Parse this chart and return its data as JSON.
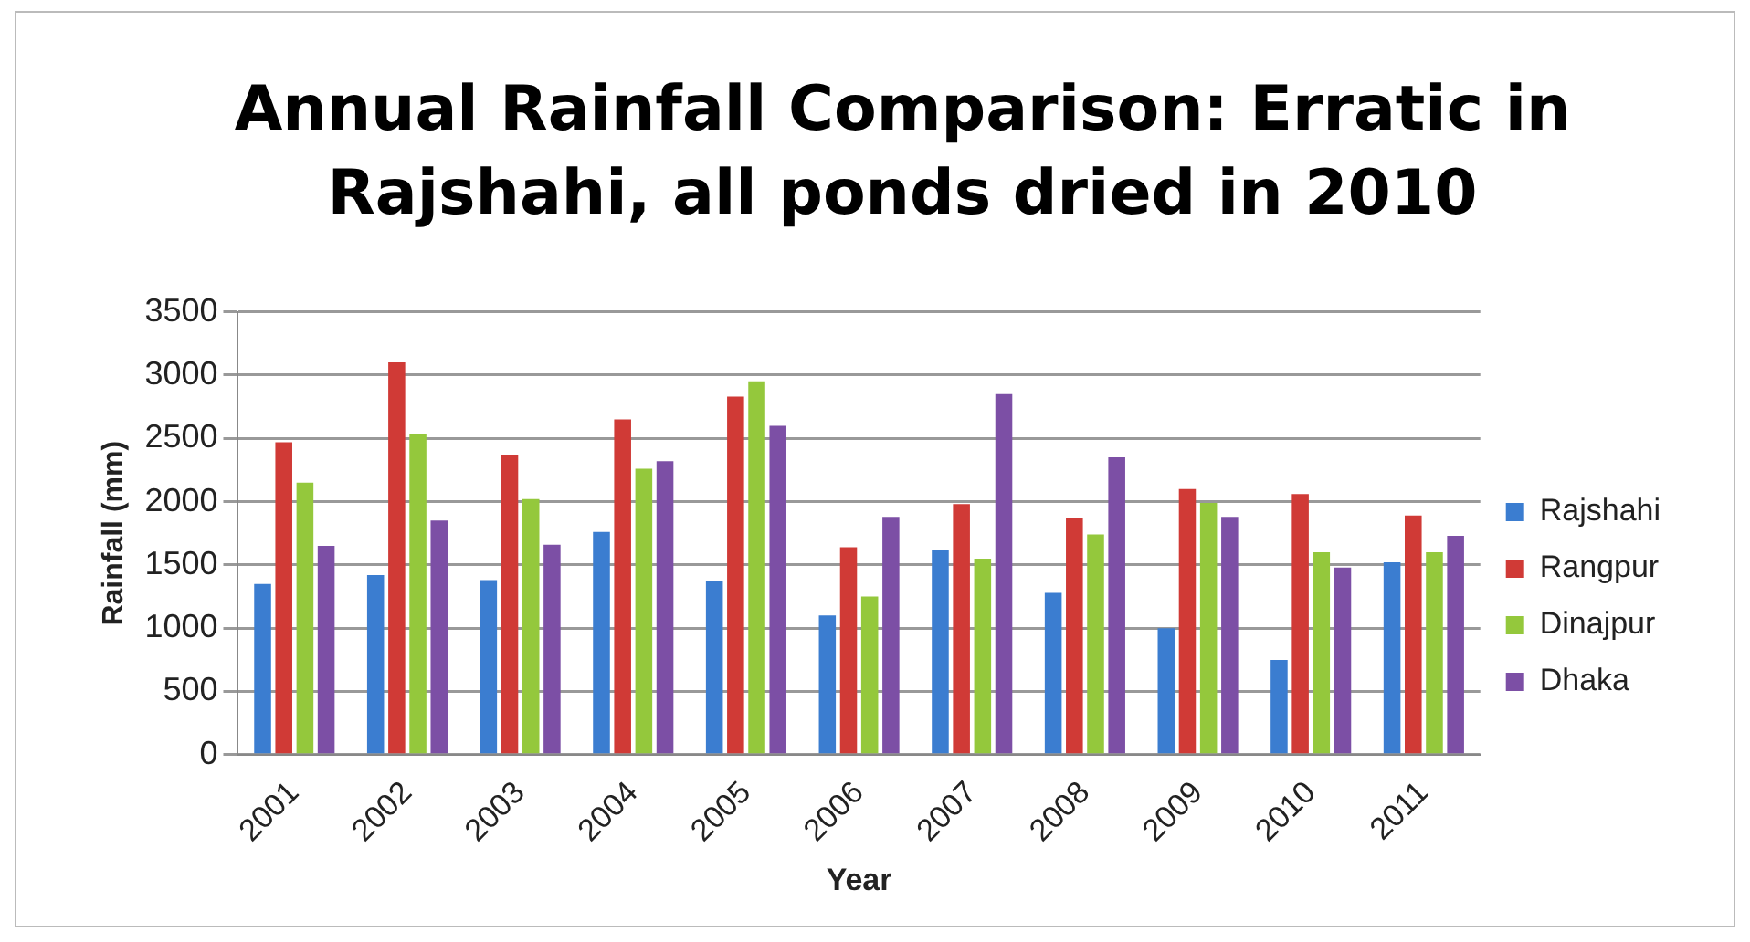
{
  "chart_data": {
    "type": "bar",
    "title": "Annual Rainfall Comparison: Erratic in Rajshahi, all ponds dried in 2010",
    "xlabel": "Year",
    "ylabel": "Rainfall (mm)",
    "categories": [
      "2001",
      "2002",
      "2003",
      "2004",
      "2005",
      "2006",
      "2007",
      "2008",
      "2009",
      "2010",
      "2011"
    ],
    "series": [
      {
        "name": "Rajshahi",
        "color": "#3b7dd0",
        "values": [
          1350,
          1420,
          1380,
          1760,
          1370,
          1100,
          1620,
          1280,
          1000,
          750,
          1520
        ]
      },
      {
        "name": "Rangpur",
        "color": "#d03a36",
        "values": [
          2470,
          3100,
          2370,
          2650,
          2830,
          1640,
          1980,
          1870,
          2100,
          2060,
          1890
        ]
      },
      {
        "name": "Dinajpur",
        "color": "#94c83c",
        "values": [
          2150,
          2530,
          2020,
          2260,
          2950,
          1250,
          1550,
          1740,
          1990,
          1600,
          1600
        ]
      },
      {
        "name": "Dhaka",
        "color": "#7c4fa5",
        "values": [
          1650,
          1850,
          1660,
          2320,
          2600,
          1880,
          2850,
          2350,
          1880,
          1480,
          1730
        ]
      }
    ],
    "ylim": [
      0,
      3500
    ],
    "yticks": [
      0,
      500,
      1000,
      1500,
      2000,
      2500,
      3000,
      3500
    ],
    "grid": "y",
    "legend": "right"
  }
}
